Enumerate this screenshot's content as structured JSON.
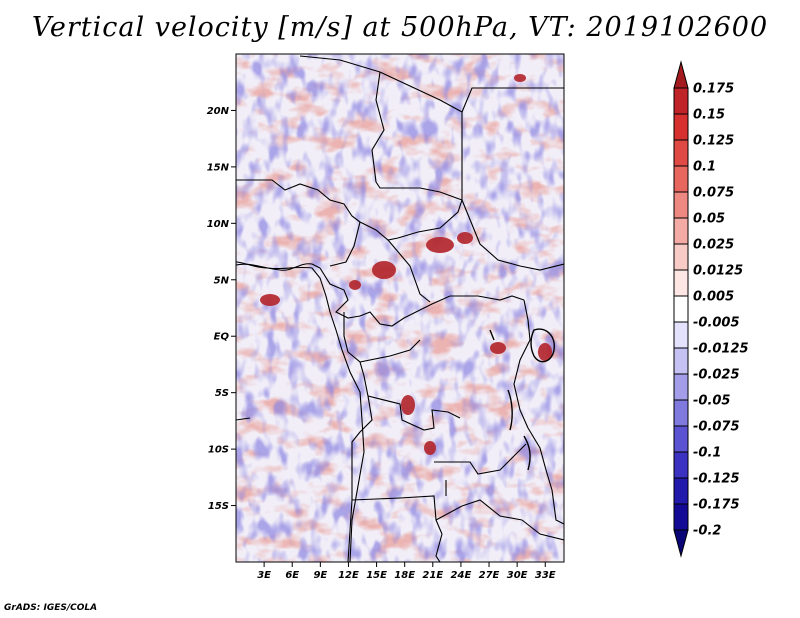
{
  "title": "Vertical velocity [m/s] at 500hPa, VT: 2019102600",
  "credit": "GrADS: IGES/COLA",
  "map": {
    "lon_range": [
      0,
      35
    ],
    "lat_range": [
      -20,
      25
    ],
    "lat_ticks": [
      {
        "value": 20,
        "label": "20N"
      },
      {
        "value": 15,
        "label": "15N"
      },
      {
        "value": 10,
        "label": "10N"
      },
      {
        "value": 5,
        "label": "5N"
      },
      {
        "value": 0,
        "label": "EQ"
      },
      {
        "value": -5,
        "label": "5S"
      },
      {
        "value": -10,
        "label": "10S"
      },
      {
        "value": -15,
        "label": "15S"
      }
    ],
    "lon_ticks": [
      {
        "value": 3,
        "label": "3E"
      },
      {
        "value": 6,
        "label": "6E"
      },
      {
        "value": 9,
        "label": "9E"
      },
      {
        "value": 12,
        "label": "12E"
      },
      {
        "value": 15,
        "label": "15E"
      },
      {
        "value": 18,
        "label": "18E"
      },
      {
        "value": 21,
        "label": "21E"
      },
      {
        "value": 24,
        "label": "24E"
      },
      {
        "value": 27,
        "label": "27E"
      },
      {
        "value": 30,
        "label": "30E"
      },
      {
        "value": 33,
        "label": "33E"
      }
    ]
  },
  "colorbar": {
    "levels": [
      "0.175",
      "0.15",
      "0.125",
      "0.1",
      "0.075",
      "0.05",
      "0.025",
      "0.0125",
      "0.005",
      "-0.005",
      "-0.0125",
      "-0.025",
      "-0.05",
      "-0.075",
      "-0.1",
      "-0.125",
      "-0.175",
      "-0.2"
    ],
    "colors": [
      "#a41b1f",
      "#c02428",
      "#d6312f",
      "#e04a44",
      "#e7675f",
      "#ee8982",
      "#f5aba5",
      "#f9cbc6",
      "#fde6e3",
      "#ffffff",
      "#e3e1fb",
      "#c5c1f3",
      "#a49eea",
      "#8079de",
      "#5c53d2",
      "#3b32c2",
      "#2219ad",
      "#130b95",
      "#0a0678"
    ]
  }
}
